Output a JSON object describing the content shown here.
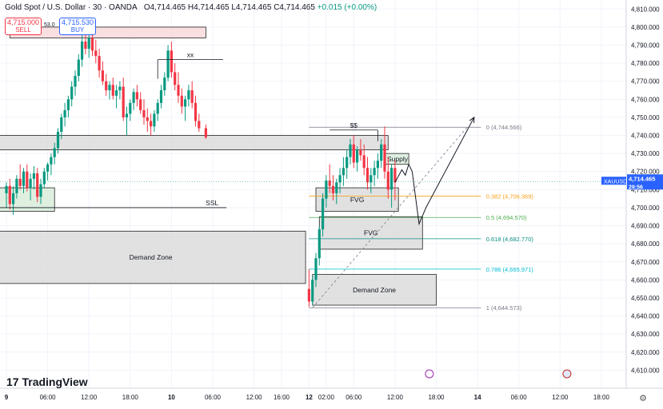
{
  "header": {
    "symbol": "Gold Spot / U.S. Dollar · 30 · OANDA",
    "ohlc": "O4,714.465 H4,714.465 L4,714.465 C4,714.465",
    "change": "+0.015 (+0.00%)"
  },
  "trade": {
    "sell_price": "4,715.000",
    "sell_label": "SELL",
    "spread": "53.0",
    "buy_price": "4,715.530",
    "buy_label": "BUY"
  },
  "branding": {
    "logo_text": "TradingView"
  },
  "price_tag": {
    "symbol": "XAUUSD",
    "price": "4,714.465",
    "countdown": "29:56"
  },
  "colors": {
    "up": "#089981",
    "down": "#f23645",
    "accent": "#2962ff",
    "fib_orange": "#f7a21b",
    "fib_teal": "#0d8f86",
    "grey_box": "#d9d9d9"
  },
  "chart_data": {
    "type": "candlestick",
    "symbol": "XAUUSD",
    "timeframe": "30",
    "ylim": [
      4600,
      4815
    ],
    "y_ticks": [
      4610,
      4620,
      4630,
      4640,
      4650,
      4660,
      4670,
      4680,
      4690,
      4700,
      4710,
      4720,
      4730,
      4740,
      4750,
      4760,
      4770,
      4780,
      4790,
      4800,
      4810
    ],
    "y_tick_labels": [
      "4,610.000",
      "4,620.000",
      "4,630.000",
      "4,640.000",
      "4,650.000",
      "4,660.000",
      "4,670.000",
      "4,680.000",
      "4,690.000",
      "4,700.000",
      "4,710.000",
      "4,720.000",
      "4,730.000",
      "4,740.000",
      "4,750.000",
      "4,760.000",
      "4,770.000",
      "4,780.000",
      "4,790.000",
      "4,800.000",
      "4,810.000"
    ],
    "x_ticks": [
      "9",
      "06:00",
      "12:00",
      "18:00",
      "10",
      "06:00",
      "12:00",
      "16:00",
      "12",
      "02:00",
      "06:00",
      "12:00",
      "18:00",
      "14",
      "06:00",
      "12:00",
      "18:00"
    ],
    "x_tick_t": [
      0,
      12,
      24,
      36,
      48,
      60,
      72,
      80,
      88,
      93,
      101,
      113,
      125,
      137,
      149,
      161,
      173
    ],
    "candles": [
      [
        0,
        4708,
        4714,
        4700,
        4712
      ],
      [
        1,
        4712,
        4716,
        4699,
        4702
      ],
      [
        2,
        4702,
        4712,
        4696,
        4708
      ],
      [
        3,
        4708,
        4718,
        4705,
        4716
      ],
      [
        4,
        4716,
        4724,
        4710,
        4712
      ],
      [
        5,
        4712,
        4722,
        4708,
        4720
      ],
      [
        6,
        4720,
        4724,
        4709,
        4711
      ],
      [
        7,
        4711,
        4719,
        4704,
        4716
      ],
      [
        8,
        4716,
        4723,
        4710,
        4719
      ],
      [
        9,
        4719,
        4722,
        4703,
        4706
      ],
      [
        10,
        4706,
        4716,
        4702,
        4713
      ],
      [
        11,
        4713,
        4722,
        4711,
        4720
      ],
      [
        12,
        4720,
        4725,
        4715,
        4724
      ],
      [
        13,
        4724,
        4730,
        4718,
        4728
      ],
      [
        14,
        4728,
        4736,
        4724,
        4733
      ],
      [
        15,
        4733,
        4744,
        4730,
        4742
      ],
      [
        16,
        4742,
        4752,
        4738,
        4750
      ],
      [
        17,
        4750,
        4758,
        4745,
        4754
      ],
      [
        18,
        4754,
        4762,
        4750,
        4760
      ],
      [
        19,
        4760,
        4770,
        4756,
        4767
      ],
      [
        20,
        4767,
        4776,
        4762,
        4773
      ],
      [
        21,
        4773,
        4785,
        4770,
        4782
      ],
      [
        22,
        4782,
        4798,
        4778,
        4792
      ],
      [
        23,
        4792,
        4801,
        4785,
        4788
      ],
      [
        24,
        4788,
        4797,
        4783,
        4794
      ],
      [
        25,
        4794,
        4800,
        4784,
        4787
      ],
      [
        26,
        4787,
        4793,
        4780,
        4784
      ],
      [
        27,
        4784,
        4788,
        4772,
        4776
      ],
      [
        28,
        4776,
        4781,
        4768,
        4770
      ],
      [
        29,
        4770,
        4774,
        4762,
        4765
      ],
      [
        30,
        4765,
        4770,
        4760,
        4768
      ],
      [
        31,
        4768,
        4772,
        4760,
        4762
      ],
      [
        32,
        4762,
        4768,
        4755,
        4765
      ],
      [
        33,
        4765,
        4770,
        4760,
        4767
      ],
      [
        34,
        4767,
        4772,
        4748,
        4750
      ],
      [
        35,
        4750,
        4756,
        4740,
        4752
      ],
      [
        36,
        4752,
        4760,
        4748,
        4758
      ],
      [
        37,
        4758,
        4766,
        4754,
        4764
      ],
      [
        38,
        4764,
        4768,
        4756,
        4760
      ],
      [
        39,
        4760,
        4764,
        4752,
        4754
      ],
      [
        40,
        4754,
        4760,
        4746,
        4750
      ],
      [
        41,
        4750,
        4755,
        4742,
        4748
      ],
      [
        42,
        4748,
        4752,
        4740,
        4745
      ],
      [
        43,
        4745,
        4754,
        4742,
        4752
      ],
      [
        44,
        4752,
        4760,
        4748,
        4758
      ],
      [
        45,
        4758,
        4768,
        4755,
        4765
      ],
      [
        46,
        4765,
        4775,
        4762,
        4772
      ],
      [
        47,
        4772,
        4790,
        4770,
        4787
      ],
      [
        48,
        4787,
        4792,
        4772,
        4775
      ],
      [
        49,
        4775,
        4780,
        4765,
        4768
      ],
      [
        50,
        4768,
        4775,
        4758,
        4762
      ],
      [
        51,
        4762,
        4766,
        4752,
        4756
      ],
      [
        52,
        4756,
        4762,
        4748,
        4760
      ],
      [
        53,
        4760,
        4768,
        4756,
        4765
      ],
      [
        54,
        4765,
        4770,
        4755,
        4758
      ],
      [
        55,
        4758,
        4762,
        4745,
        4748
      ],
      [
        56,
        4748,
        4752,
        4742,
        4744
      ],
      [
        58,
        4744,
        4746,
        4738,
        4739
      ],
      [
        88,
        4655,
        4666,
        4645,
        4648
      ],
      [
        89,
        4648,
        4662,
        4646,
        4660
      ],
      [
        90,
        4660,
        4675,
        4656,
        4672
      ],
      [
        91,
        4672,
        4690,
        4668,
        4688
      ],
      [
        92,
        4688,
        4708,
        4684,
        4705
      ],
      [
        93,
        4705,
        4718,
        4700,
        4715
      ],
      [
        94,
        4715,
        4724,
        4708,
        4712
      ],
      [
        95,
        4712,
        4718,
        4704,
        4708
      ],
      [
        96,
        4708,
        4716,
        4702,
        4714
      ],
      [
        97,
        4714,
        4722,
        4708,
        4718
      ],
      [
        98,
        4718,
        4728,
        4712,
        4722
      ],
      [
        99,
        4722,
        4732,
        4716,
        4728
      ],
      [
        100,
        4728,
        4738,
        4724,
        4735
      ],
      [
        101,
        4735,
        4740,
        4722,
        4725
      ],
      [
        102,
        4725,
        4734,
        4720,
        4732
      ],
      [
        103,
        4732,
        4738,
        4726,
        4729
      ],
      [
        104,
        4729,
        4735,
        4718,
        4722
      ],
      [
        105,
        4722,
        4728,
        4710,
        4714
      ],
      [
        106,
        4714,
        4722,
        4708,
        4718
      ],
      [
        107,
        4718,
        4726,
        4712,
        4722
      ],
      [
        108,
        4722,
        4730,
        4716,
        4726
      ],
      [
        109,
        4726,
        4738,
        4722,
        4735
      ],
      [
        110,
        4735,
        4745,
        4716,
        4720
      ],
      [
        111,
        4720,
        4728,
        4705,
        4710
      ],
      [
        112,
        4710,
        4724,
        4700,
        4722
      ],
      [
        113,
        4722,
        4726,
        4704,
        4714
      ]
    ],
    "zones": [
      {
        "label": "",
        "t0": 1,
        "t1": 58,
        "p0": 4794,
        "p1": 4800,
        "fill": "#f9d7da"
      },
      {
        "label": "",
        "t0": -3,
        "t1": 111,
        "p0": 4732,
        "p1": 4740,
        "fill": "#d9d9d9"
      },
      {
        "label": "",
        "t0": -3,
        "t1": 14,
        "p0": 4698,
        "p1": 4711,
        "fill": "#d7ecd8"
      },
      {
        "label": "Demand Zone",
        "t0": -3,
        "t1": 87,
        "p0": 4658,
        "p1": 4687,
        "fill": "#d9d9d9"
      },
      {
        "label": "FVG",
        "t0": 90,
        "t1": 114,
        "p0": 4698,
        "p1": 4711,
        "fill": "#d9d9d9"
      },
      {
        "label": "FVG",
        "t0": 91,
        "t1": 121,
        "p0": 4677,
        "p1": 4695,
        "fill": "#d9d9d9"
      },
      {
        "label": "Demand Zone",
        "t0": 89,
        "t1": 125,
        "p0": 4646,
        "p1": 4663,
        "fill": "#d9d9d9"
      },
      {
        "label": "Supply",
        "t0": 110,
        "t1": 117,
        "p0": 4724,
        "p1": 4730,
        "fill": "#d7ecd8"
      }
    ],
    "annotations": [
      {
        "text": "xx",
        "t0": 44,
        "t1": 63,
        "p": 4782
      },
      {
        "text": "$$",
        "t0": 94,
        "t1": 108,
        "p": 4743
      },
      {
        "text": "SSL",
        "t0": -3,
        "t1": 64,
        "p": 4700
      }
    ],
    "fib_levels": [
      {
        "level": "0",
        "value": 4744.566,
        "label": "0 (4,744.566)"
      },
      {
        "level": "0.382",
        "value": 4706.369,
        "label": "0.382 (4,706.369)"
      },
      {
        "level": "0.5",
        "value": 4694.57,
        "label": "0.5 (4,694.570)"
      },
      {
        "level": "0.618",
        "value": 4682.77,
        "label": "0.618 (4,682.770)"
      },
      {
        "level": "0.786",
        "value": 4665.971,
        "label": "0.786 (4,665.971)"
      },
      {
        "level": "1",
        "value": 4644.573,
        "label": "1 (4,644.573)"
      }
    ],
    "projection_path": [
      [
        113,
        4714
      ],
      [
        115,
        4721
      ],
      [
        116,
        4718
      ],
      [
        117,
        4724
      ],
      [
        118,
        4720
      ],
      [
        120,
        4691
      ],
      [
        122,
        4700
      ],
      [
        136,
        4750
      ]
    ],
    "current_price": 4714.465
  }
}
